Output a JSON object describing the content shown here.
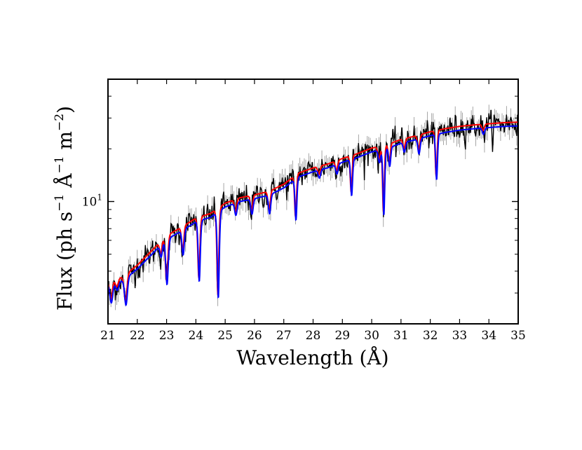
{
  "chart_data": {
    "type": "line",
    "title": "",
    "xlabel": "Wavelength (Å)",
    "ylabel": {
      "prefix": "Flux (ph s",
      "sup1": "−1",
      "mid1": " Å",
      "sup2": "−1",
      "mid2": " m",
      "sup3": "−2",
      "suffix": ")"
    },
    "xlim": [
      21,
      35
    ],
    "ylim": [
      2.0,
      50.0
    ],
    "yscale": "log",
    "xticks": [
      21,
      22,
      23,
      24,
      25,
      26,
      27,
      28,
      29,
      30,
      31,
      32,
      33,
      34,
      35
    ],
    "xtick_labels": [
      "21",
      "22",
      "23",
      "24",
      "25",
      "26",
      "27",
      "28",
      "29",
      "30",
      "31",
      "32",
      "33",
      "34",
      "35"
    ],
    "yticks_major": [
      10
    ],
    "ytick_major_labels": [
      {
        "base": "10",
        "exp": "1"
      }
    ],
    "yticks_minor": [
      3,
      4,
      5,
      6,
      7,
      8,
      9,
      20,
      30,
      40
    ],
    "grid": false,
    "legend": "none",
    "colors": {
      "data": "#000000",
      "errorbar": "#7f7f7f",
      "model_red": "#ff0000",
      "model_blue": "#0000ff"
    },
    "continuum": {
      "x": [
        21.0,
        21.5,
        22.0,
        22.5,
        23.0,
        23.5,
        24.0,
        24.5,
        25.0,
        25.5,
        26.0,
        26.5,
        27.0,
        27.5,
        28.0,
        28.5,
        29.0,
        29.5,
        30.0,
        30.5,
        31.0,
        31.5,
        32.0,
        32.5,
        33.0,
        33.5,
        34.0,
        34.5,
        35.0
      ],
      "y": [
        3.4,
        3.6,
        4.2,
        5.1,
        6.2,
        6.9,
        7.8,
        8.3,
        9.5,
        10.2,
        10.6,
        11.1,
        12.2,
        14.1,
        15.1,
        15.9,
        17.1,
        18.2,
        19.6,
        20.4,
        22.0,
        23.0,
        24.3,
        25.3,
        26.1,
        26.6,
        27.0,
        27.4,
        27.6
      ]
    },
    "absorption_lines": [
      {
        "x": 21.1,
        "depth": 0.22,
        "width": 0.05
      },
      {
        "x": 21.3,
        "depth": 0.1,
        "width": 0.05
      },
      {
        "x": 21.6,
        "depth": 0.3,
        "width": 0.05
      },
      {
        "x": 22.8,
        "depth": 0.15,
        "width": 0.04
      },
      {
        "x": 23.0,
        "depth": 0.45,
        "width": 0.045
      },
      {
        "x": 23.55,
        "depth": 0.28,
        "width": 0.04
      },
      {
        "x": 24.1,
        "depth": 0.55,
        "width": 0.04
      },
      {
        "x": 24.75,
        "depth": 0.68,
        "width": 0.04
      },
      {
        "x": 25.35,
        "depth": 0.15,
        "width": 0.04
      },
      {
        "x": 25.9,
        "depth": 0.18,
        "width": 0.04
      },
      {
        "x": 26.5,
        "depth": 0.22,
        "width": 0.04
      },
      {
        "x": 27.4,
        "depth": 0.42,
        "width": 0.035
      },
      {
        "x": 28.2,
        "depth": 0.1,
        "width": 0.04
      },
      {
        "x": 28.8,
        "depth": 0.12,
        "width": 0.04
      },
      {
        "x": 29.3,
        "depth": 0.38,
        "width": 0.035
      },
      {
        "x": 30.25,
        "depth": 0.15,
        "width": 0.04
      },
      {
        "x": 30.4,
        "depth": 0.58,
        "width": 0.035
      },
      {
        "x": 30.6,
        "depth": 0.22,
        "width": 0.035
      },
      {
        "x": 31.1,
        "depth": 0.12,
        "width": 0.04
      },
      {
        "x": 31.6,
        "depth": 0.18,
        "width": 0.04
      },
      {
        "x": 32.2,
        "depth": 0.45,
        "width": 0.035
      },
      {
        "x": 33.8,
        "depth": 0.08,
        "width": 0.04
      }
    ]
  }
}
